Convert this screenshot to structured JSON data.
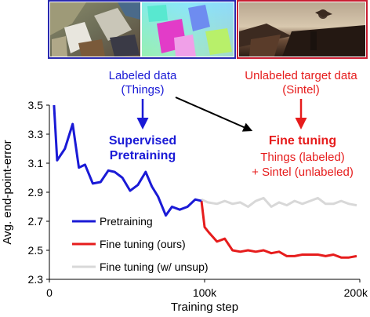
{
  "chart_data": {
    "type": "line",
    "xlabel": "Training step",
    "ylabel": "Avg. end-point-error",
    "xlim": [
      0,
      200000
    ],
    "ylim": [
      2.3,
      3.5
    ],
    "xticks": [
      {
        "value": 0,
        "label": "0"
      },
      {
        "value": 100000,
        "label": "100k"
      },
      {
        "value": 200000,
        "label": "200k"
      }
    ],
    "yticks": [
      {
        "value": 2.3,
        "label": "2.3"
      },
      {
        "value": 2.5,
        "label": "2.5"
      },
      {
        "value": 2.7,
        "label": "2.7"
      },
      {
        "value": 2.9,
        "label": "2.9"
      },
      {
        "value": 3.1,
        "label": "3.1"
      },
      {
        "value": 3.3,
        "label": "3.3"
      },
      {
        "value": 3.5,
        "label": "3.5"
      }
    ],
    "grid": false,
    "legend_position": "bottom-left",
    "series": [
      {
        "name": "Pretraining",
        "color": "#1a1ad6",
        "x": [
          3000,
          5000,
          10000,
          15000,
          19000,
          23000,
          28000,
          33000,
          38000,
          42000,
          47000,
          52000,
          57000,
          62000,
          66000,
          70000,
          75000,
          79000,
          84000,
          89000,
          94000,
          98000
        ],
        "y": [
          3.5,
          3.12,
          3.2,
          3.37,
          3.07,
          3.09,
          2.96,
          2.97,
          3.05,
          3.04,
          3.0,
          2.91,
          2.95,
          3.04,
          2.94,
          2.87,
          2.74,
          2.8,
          2.78,
          2.8,
          2.85,
          2.84
        ]
      },
      {
        "name": "Fine tuning (ours)",
        "color": "#e61c1c",
        "x": [
          98000,
          100000,
          103000,
          108000,
          113000,
          118000,
          123000,
          128000,
          133000,
          138000,
          143000,
          148000,
          153000,
          158000,
          163000,
          168000,
          173000,
          178000,
          183000,
          188000,
          193000,
          198000
        ],
        "y": [
          2.84,
          2.66,
          2.62,
          2.56,
          2.58,
          2.5,
          2.49,
          2.5,
          2.49,
          2.5,
          2.48,
          2.49,
          2.46,
          2.46,
          2.47,
          2.47,
          2.47,
          2.46,
          2.47,
          2.45,
          2.45,
          2.46
        ]
      },
      {
        "name": "Fine tuning (w/ unsup)",
        "color": "#d8d8d8",
        "x": [
          98000,
          102000,
          108000,
          113000,
          118000,
          123000,
          128000,
          133000,
          138000,
          143000,
          148000,
          153000,
          158000,
          163000,
          168000,
          173000,
          178000,
          183000,
          188000,
          193000,
          198000
        ],
        "y": [
          2.85,
          2.83,
          2.82,
          2.84,
          2.82,
          2.83,
          2.8,
          2.84,
          2.86,
          2.8,
          2.83,
          2.81,
          2.84,
          2.82,
          2.84,
          2.86,
          2.82,
          2.82,
          2.84,
          2.82,
          2.81
        ]
      }
    ]
  },
  "annotations": {
    "labeled_data": [
      "Labeled data",
      "(Things)"
    ],
    "labeled_color": "#1a1ad6",
    "unlabeled_data": [
      "Unlabeled target data",
      "(Sintel)"
    ],
    "unlabeled_color": "#e61c1c",
    "supervised": [
      "Supervised",
      "Pretraining"
    ],
    "fine_tuning_title": "Fine tuning",
    "fine_tuning_lines": [
      "Things (labeled)",
      "+ Sintel (unlabeled)"
    ]
  },
  "images": {
    "things_render": "synthetic-chairs-render",
    "things_flow": "optical-flow-visualization",
    "sintel_frame": "sintel-movie-frame",
    "things_border_color": "#2a2ab0",
    "sintel_border_color": "#c81e32"
  }
}
